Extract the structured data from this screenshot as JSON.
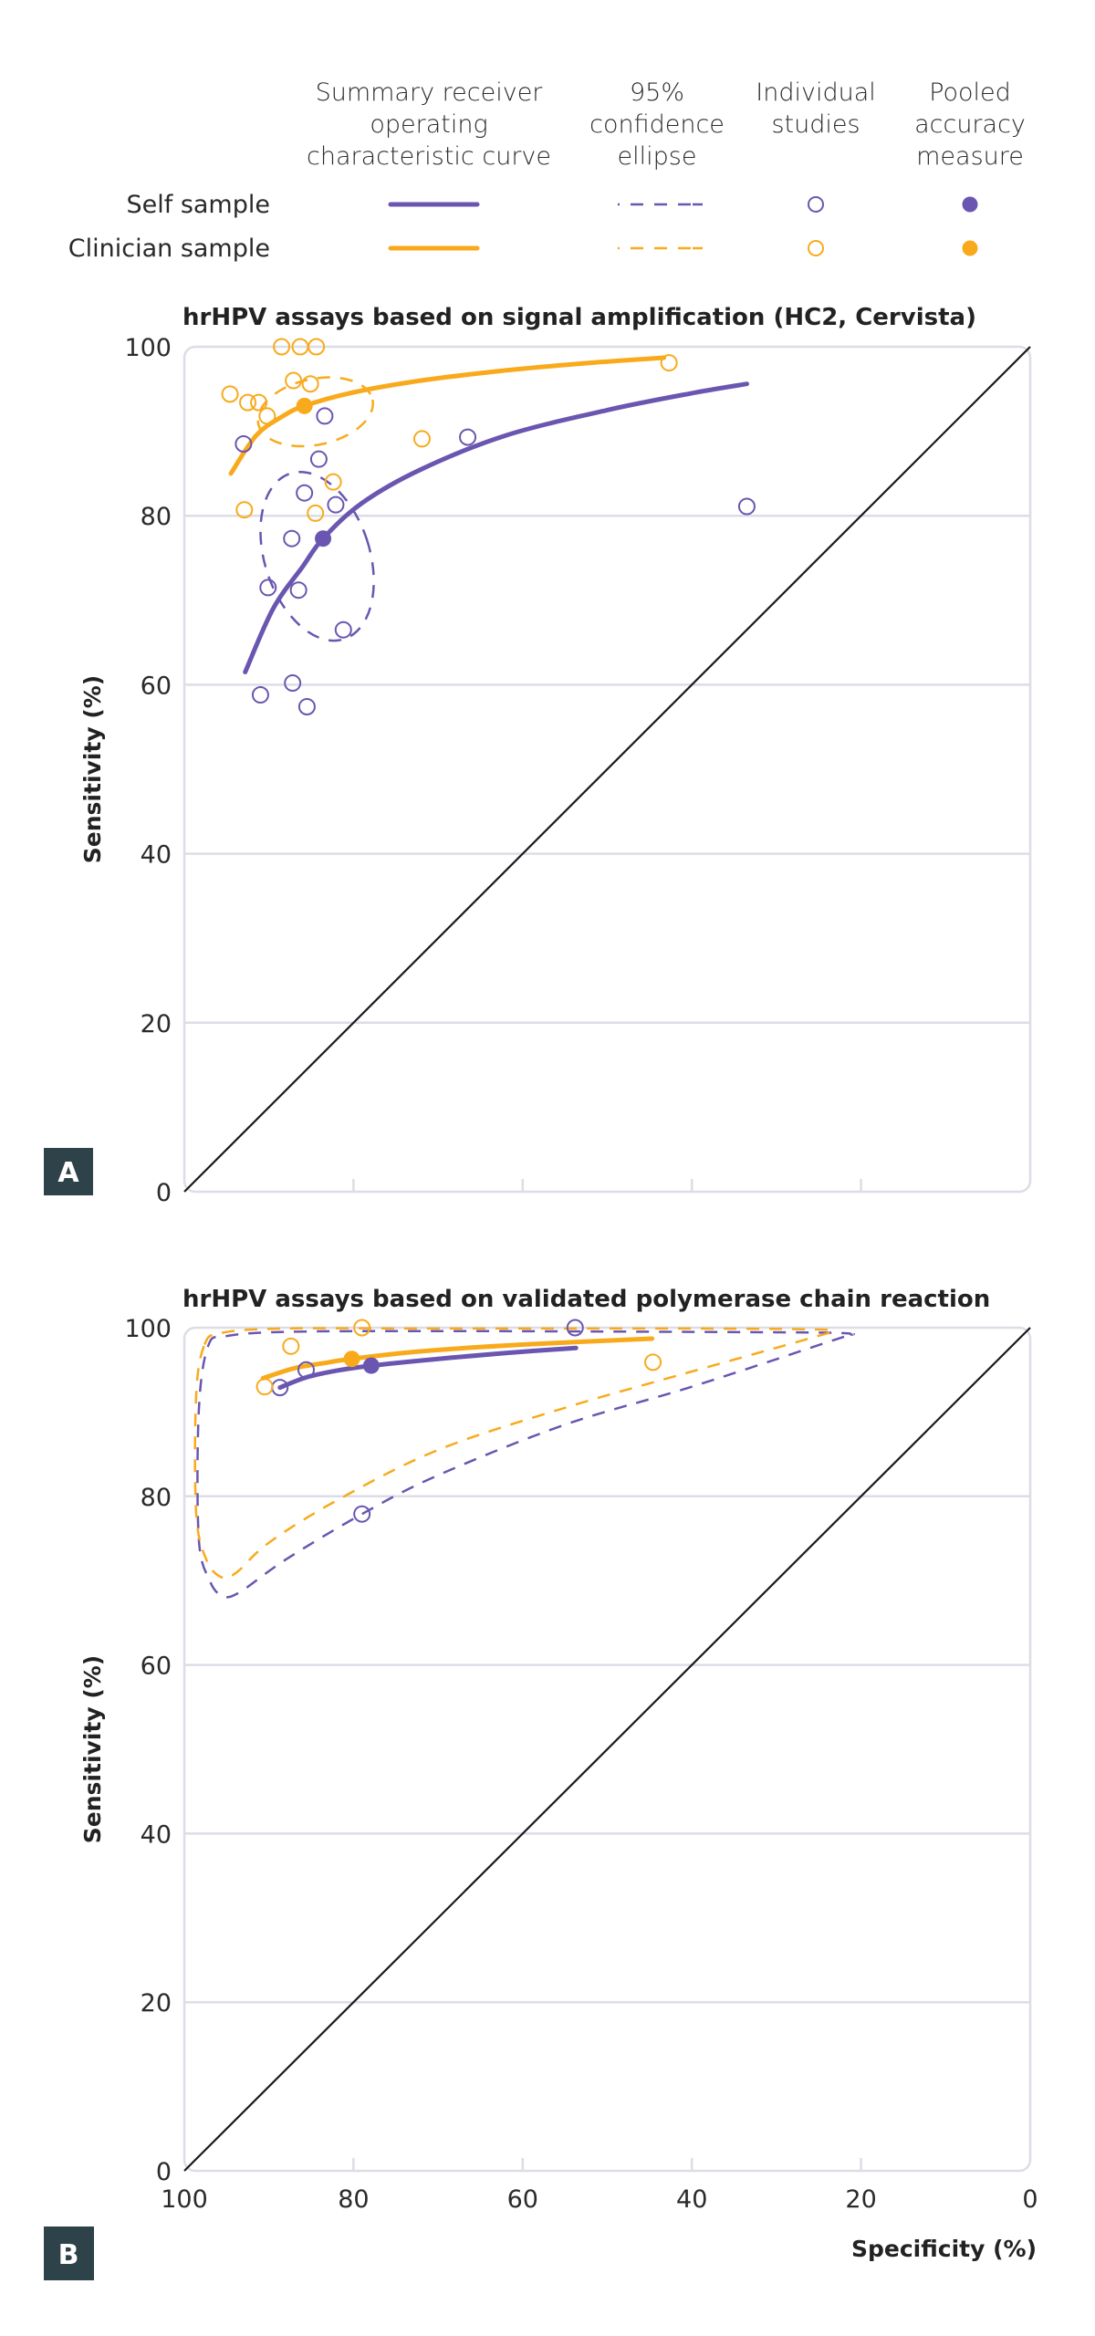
{
  "colors": {
    "self": "#6a56b0",
    "clinician": "#f8aa1c",
    "grid": "#dcdde6",
    "diagonal": "#1a1a1a",
    "panel_letter_bg": "#2e4249"
  },
  "legend": {
    "headers": [
      [
        "Summary receiver",
        "operating",
        "characteristic curve"
      ],
      [
        "95%",
        "confidence",
        "ellipse"
      ],
      [
        "Individual",
        "studies"
      ],
      [
        "Pooled",
        "accuracy",
        "measure"
      ]
    ],
    "rows": [
      {
        "label": "Self sample",
        "series": "self"
      },
      {
        "label": "Clinician sample",
        "series": "clinician"
      }
    ]
  },
  "chart_data": [
    {
      "type": "scatter",
      "panel_letter": "A",
      "title": "hrHPV assays based on signal amplification (HC2, Cervista)",
      "xlabel": "Specificity (%)",
      "ylabel": "Sensitivity (%)",
      "xlim": [
        100,
        0
      ],
      "ylim": [
        0,
        100
      ],
      "xticks": [
        100,
        80,
        60,
        40,
        20,
        0
      ],
      "yticks": [
        0,
        20,
        40,
        60,
        80,
        100
      ],
      "show_xtick_labels": false,
      "show_xlabel": false,
      "grid": true,
      "diagonal": [
        [
          100,
          0
        ],
        [
          0,
          100
        ]
      ],
      "series": [
        {
          "name": "Self sample",
          "key": "self",
          "studies": [
            [
              83.4,
              91.8
            ],
            [
              93.0,
              88.5
            ],
            [
              84.1,
              86.7
            ],
            [
              85.8,
              82.7
            ],
            [
              82.1,
              81.3
            ],
            [
              87.3,
              77.3
            ],
            [
              90.1,
              71.5
            ],
            [
              86.5,
              71.2
            ],
            [
              81.2,
              66.5
            ],
            [
              87.2,
              60.2
            ],
            [
              91.0,
              58.8
            ],
            [
              85.5,
              57.4
            ],
            [
              66.5,
              89.3
            ],
            [
              33.5,
              81.1
            ]
          ],
          "pooled": [
            83.6,
            77.3
          ],
          "sroc": [
            [
              92.8,
              61.5
            ],
            [
              89.5,
              69.0
            ],
            [
              86.0,
              74.0
            ],
            [
              83.6,
              77.3
            ],
            [
              79.0,
              81.5
            ],
            [
              72.0,
              85.5
            ],
            [
              62.0,
              89.5
            ],
            [
              50.0,
              92.5
            ],
            [
              40.0,
              94.5
            ],
            [
              33.5,
              95.6
            ]
          ],
          "ellipse": {
            "center": [
              84.3,
              75.2
            ],
            "rx_spec": 6.2,
            "ry_sens": 10.3,
            "rotation_deg": -18
          }
        },
        {
          "name": "Clinician sample",
          "key": "clinician",
          "studies": [
            [
              88.5,
              100
            ],
            [
              86.3,
              100
            ],
            [
              84.4,
              100
            ],
            [
              87.1,
              96.0
            ],
            [
              85.1,
              95.6
            ],
            [
              94.6,
              94.4
            ],
            [
              92.5,
              93.4
            ],
            [
              91.2,
              93.4
            ],
            [
              90.2,
              91.8
            ],
            [
              71.9,
              89.1
            ],
            [
              82.4,
              84.0
            ],
            [
              92.9,
              80.7
            ],
            [
              84.5,
              80.3
            ],
            [
              42.7,
              98.1
            ]
          ],
          "pooled": [
            85.8,
            93.0
          ],
          "sroc": [
            [
              94.5,
              85.0
            ],
            [
              91.5,
              89.5
            ],
            [
              88.5,
              91.7
            ],
            [
              85.8,
              93.0
            ],
            [
              80.0,
              94.6
            ],
            [
              72.0,
              96.0
            ],
            [
              62.0,
              97.2
            ],
            [
              52.0,
              98.1
            ],
            [
              43.3,
              98.7
            ]
          ],
          "ellipse": {
            "center": [
              84.5,
              92.3
            ],
            "rx_spec": 6.9,
            "ry_sens": 3.9,
            "rotation_deg": -12
          }
        }
      ]
    },
    {
      "type": "scatter",
      "panel_letter": "B",
      "title": "hrHPV assays based on validated polymerase chain reaction",
      "xlabel": "Specificity (%)",
      "ylabel": "Sensitivity (%)",
      "xlim": [
        100,
        0
      ],
      "ylim": [
        0,
        100
      ],
      "xticks": [
        100,
        80,
        60,
        40,
        20,
        0
      ],
      "yticks": [
        0,
        20,
        40,
        60,
        80,
        100
      ],
      "show_xtick_labels": true,
      "show_xlabel": true,
      "grid": true,
      "diagonal": [
        [
          100,
          0
        ],
        [
          0,
          100
        ]
      ],
      "series": [
        {
          "name": "Self sample",
          "key": "self",
          "studies": [
            [
              53.8,
              100
            ],
            [
              85.6,
              95.0
            ],
            [
              88.7,
              92.9
            ],
            [
              79.0,
              77.9
            ]
          ],
          "pooled": [
            77.9,
            95.5
          ],
          "sroc": [
            [
              88.7,
              92.9
            ],
            [
              85.6,
              94.1
            ],
            [
              82.0,
              94.9
            ],
            [
              77.9,
              95.5
            ],
            [
              70.0,
              96.3
            ],
            [
              62.0,
              97.0
            ],
            [
              53.7,
              97.6
            ]
          ],
          "region": [
            [
              97.2,
              97.8
            ],
            [
              95.0,
              99.0
            ],
            [
              88.0,
              99.5
            ],
            [
              70.0,
              99.6
            ],
            [
              40.0,
              99.5
            ],
            [
              24.0,
              99.4
            ],
            [
              21.2,
              99.2
            ],
            [
              23.0,
              98.6
            ],
            [
              40.0,
              93.0
            ],
            [
              55.0,
              88.5
            ],
            [
              70.0,
              82.5
            ],
            [
              79.0,
              77.9
            ],
            [
              88.0,
              72.5
            ],
            [
              93.5,
              68.6
            ],
            [
              95.5,
              68.2
            ],
            [
              97.0,
              70.0
            ],
            [
              98.3,
              75.0
            ],
            [
              98.3,
              90.0
            ]
          ]
        },
        {
          "name": "Clinician sample",
          "key": "clinician",
          "studies": [
            [
              79.0,
              100
            ],
            [
              87.4,
              97.8
            ],
            [
              90.5,
              93.0
            ],
            [
              44.6,
              95.9
            ]
          ],
          "pooled": [
            80.2,
            96.3
          ],
          "sroc": [
            [
              90.7,
              94.0
            ],
            [
              87.0,
              95.2
            ],
            [
              83.5,
              95.8
            ],
            [
              80.2,
              96.3
            ],
            [
              72.0,
              97.2
            ],
            [
              60.0,
              98.0
            ],
            [
              44.7,
              98.7
            ]
          ],
          "region": [
            [
              97.6,
              98.0
            ],
            [
              95.5,
              99.4
            ],
            [
              88.0,
              99.9
            ],
            [
              70.0,
              99.9
            ],
            [
              40.0,
              99.9
            ],
            [
              26.0,
              99.8
            ],
            [
              23.4,
              99.6
            ],
            [
              25.5,
              98.9
            ],
            [
              40.0,
              94.8
            ],
            [
              55.0,
              90.5
            ],
            [
              70.0,
              85.5
            ],
            [
              82.0,
              79.5
            ],
            [
              90.0,
              74.5
            ],
            [
              93.8,
              71.0
            ],
            [
              95.6,
              70.4
            ],
            [
              97.4,
              72.5
            ],
            [
              98.6,
              78.0
            ],
            [
              98.6,
              92.0
            ]
          ]
        }
      ]
    }
  ]
}
